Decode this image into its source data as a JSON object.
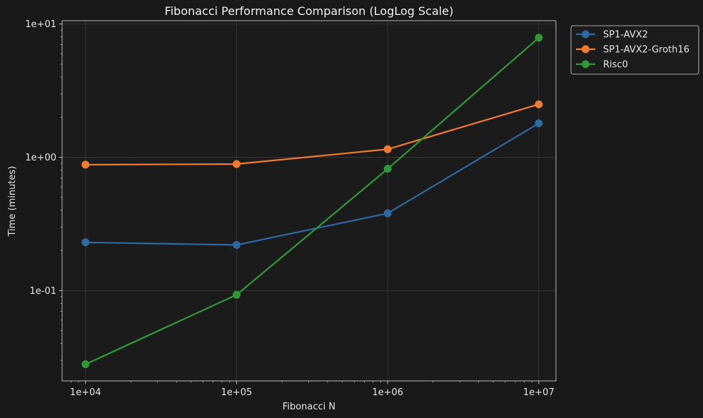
{
  "chart_data": {
    "type": "line",
    "title": "Fibonacci Performance Comparison (LogLog Scale)",
    "xlabel": "Fibonacci N",
    "ylabel": "Time (minutes)",
    "xscale": "log",
    "yscale": "log",
    "x": [
      10000,
      100000,
      1000000,
      10000000
    ],
    "xticks": [
      {
        "value": 10000,
        "label": "1e+04"
      },
      {
        "value": 100000,
        "label": "1e+05"
      },
      {
        "value": 1000000,
        "label": "1e+06"
      },
      {
        "value": 10000000,
        "label": "1e+07"
      }
    ],
    "yticks": [
      {
        "value": 0.1,
        "label": "1e-01"
      },
      {
        "value": 1,
        "label": "1e+00"
      },
      {
        "value": 10,
        "label": "1e+01"
      }
    ],
    "xlim": [
      7000,
      13000000
    ],
    "ylim": [
      0.021,
      10.6
    ],
    "grid": true,
    "legend_position": "outside-top-right",
    "series": [
      {
        "name": "SP1-AVX2",
        "color": "#2c6aa5",
        "values": [
          0.23,
          0.22,
          0.38,
          1.8
        ]
      },
      {
        "name": "SP1-AVX2-Groth16",
        "color": "#f47a2f",
        "values": [
          0.88,
          0.89,
          1.15,
          2.5
        ]
      },
      {
        "name": "Risc0",
        "color": "#2f9a35",
        "values": [
          0.028,
          0.093,
          0.82,
          7.9
        ]
      }
    ]
  }
}
